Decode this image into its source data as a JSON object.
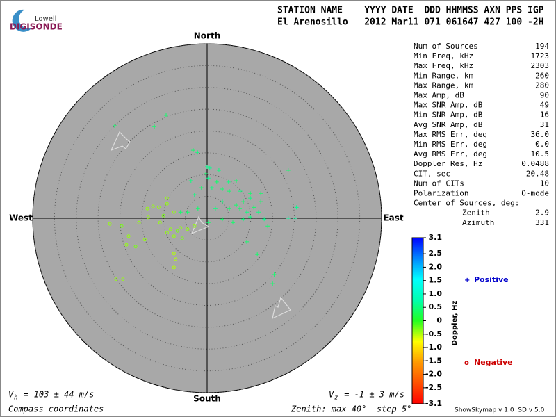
{
  "logo": {
    "top": "Lowell",
    "bottom": "DIGISONDE"
  },
  "header": {
    "labels": "STATION NAME    YYYY DATE  DDD HHMMSS AXN PPS IGP",
    "values": "El Arenosillo   2012 Mar11 071 061647 427 100 -2H"
  },
  "stats": {
    "rows": [
      [
        "Num of Sources",
        "194"
      ],
      [
        "Min Freq, kHz",
        "1723"
      ],
      [
        "Max Freq, kHz",
        "2303"
      ],
      [
        "Min Range, km",
        "260"
      ],
      [
        "Max Range, km",
        "280"
      ],
      [
        "Max Amp, dB",
        "90"
      ],
      [
        "Max SNR Amp, dB",
        "49"
      ],
      [
        "Min SNR Amp, dB",
        "16"
      ],
      [
        "Avg SNR Amp, dB",
        "31"
      ],
      [
        "Max RMS Err, deg",
        "36.0"
      ],
      [
        "Min RMS Err, deg",
        "0.0"
      ],
      [
        "Avg RMS Err, deg",
        "10.5"
      ],
      [
        "Doppler Res, Hz",
        "0.0488"
      ],
      [
        "CIT, sec",
        "20.48"
      ],
      [
        "Num of CITs",
        "10"
      ],
      [
        "Polarization",
        "O-mode"
      ]
    ],
    "center_label": "Center of Sources, deg:",
    "center_rows": [
      [
        "Zenith",
        "2.9"
      ],
      [
        "Azimuth",
        "331"
      ]
    ]
  },
  "footer": {
    "vh_symbol": "V",
    "vh_sub": "h",
    "vh_text": " = 103 ± 44 m/s",
    "vz_symbol": "V",
    "vz_sub": "z",
    "vz_text": " = -1 ± 3 m/s",
    "coords": "Compass coordinates",
    "zenith": "Zenith: max 40°  step 5°",
    "version": "ShowSkymap v 1.0  SD v 5.0"
  },
  "chart_data": {
    "type": "polar-scatter",
    "directions": {
      "north": "North",
      "south": "South",
      "east": "East",
      "west": "West"
    },
    "rlim": [
      0,
      40
    ],
    "rticks": [
      5,
      10,
      15,
      20,
      25,
      30,
      35,
      40
    ],
    "colorbar": {
      "label": "Doppler, Hz",
      "lim": [
        -3.1,
        3.1
      ],
      "colors": [
        "#ff0000",
        "#ff5000",
        "#ff9a00",
        "#ffff00",
        "#22ff22",
        "#00ffb0",
        "#00ffff",
        "#0088ff",
        "#0000ff"
      ],
      "ticks": [
        3.1,
        2.5,
        {
          "value": 2,
          "label": "2.0"
        },
        1.5,
        {
          "value": 1,
          "label": "1.0"
        },
        0.5,
        0,
        -0.5,
        {
          "value": -1,
          "label": "-1.0"
        },
        -1.5,
        {
          "value": -2,
          "label": "-2.0"
        },
        -2.5,
        -3.1
      ]
    },
    "series": [
      {
        "name": "Positive",
        "marker": "+",
        "color": "#0000cc",
        "x": [
          -9.4,
          -12.1,
          -21.2,
          -3.2,
          -2.2,
          0,
          0.6,
          -0.3,
          2.7,
          6.7,
          4.9,
          0.3,
          2.2,
          1.1,
          3.5,
          5.1,
          7.6,
          9.9,
          12.3,
          9.9,
          8.3,
          6.7,
          3.5,
          5.1,
          7.5,
          9.1,
          10.7,
          12.3,
          11.8,
          13.1,
          13.9,
          18.6,
          20.5,
          18.6,
          20.2,
          9.1,
          11.5,
          15.4,
          15.0,
          1.9,
          0.3,
          -2.1,
          -4.5,
          -6.1,
          -2.9,
          -3.7,
          -1.3,
          3.5,
          5.9,
          8.3,
          9.9
        ],
        "y": [
          23.6,
          21.0,
          21.2,
          15.6,
          15.1,
          11.8,
          11.5,
          10.2,
          11.0,
          8.6,
          8.3,
          9.2,
          8.3,
          7.0,
          6.7,
          6.2,
          6.2,
          5.7,
          5.7,
          4.6,
          3.8,
          3.0,
          3.8,
          2.2,
          2.2,
          1.4,
          2.5,
          3.8,
          1.4,
          -0.2,
          -1.8,
          11.0,
          2.5,
          0,
          0,
          -5.4,
          -8.3,
          -12.9,
          -15.0,
          2.2,
          -1.0,
          2.2,
          1.4,
          1.4,
          5.4,
          8.6,
          7.0,
          -0.2,
          -1.0,
          -0.2,
          0.3
        ],
        "doppler": [
          0.4,
          0.4,
          0.4,
          0.4,
          0.5,
          0.6,
          0.6,
          0.4,
          0.5,
          0.4,
          0.5,
          0.6,
          0.4,
          0.5,
          0.4,
          0.4,
          0.5,
          0.4,
          0.4,
          0.5,
          0.4,
          0.4,
          0.5,
          0.4,
          0.4,
          0.5,
          0.4,
          0.4,
          0.5,
          0.6,
          0.4,
          0.4,
          0.6,
          0.7,
          0.7,
          0.4,
          0.4,
          0.4,
          0.4,
          0.5,
          0.4,
          0.4,
          0.4,
          0.4,
          0.5,
          0.5,
          0.4,
          0.4,
          0.4,
          0.5,
          0.5
        ]
      },
      {
        "name": "Negative",
        "marker": "o",
        "color": "#cc0000",
        "x": [
          -13.7,
          -12.4,
          -9.2,
          -9.2,
          -11.1,
          -10.0,
          -7.6,
          -13.5,
          -22.3,
          -19.6,
          -15.6,
          -10.8,
          -8.4,
          -6.8,
          -6.1,
          -4.5,
          -7.6,
          -9.2,
          -18.0,
          -18.5,
          -16.4,
          -14.3,
          -7.6,
          -7.2,
          -7.6,
          -20.9,
          -19.3,
          -5.7,
          -2.9
        ],
        "y": [
          2.2,
          2.7,
          4.6,
          3.3,
          2.5,
          0.6,
          1.4,
          0.2,
          -1.3,
          -1.8,
          -1.0,
          -1.0,
          -2.5,
          -2.9,
          -2.2,
          -2.5,
          -4.1,
          -3.3,
          -4.1,
          -6.1,
          -6.5,
          -4.9,
          -8.1,
          -9.4,
          -11.3,
          -14.0,
          -14.0,
          -4.6,
          -1.8
        ],
        "doppler": [
          -0.4,
          -0.4,
          -0.4,
          -0.4,
          -0.4,
          -0.3,
          -0.4,
          -0.4,
          -0.4,
          -0.3,
          -0.4,
          -0.4,
          -0.4,
          -0.3,
          -0.4,
          -0.4,
          -0.4,
          -0.4,
          -0.4,
          -0.4,
          -0.3,
          -0.4,
          -0.5,
          -0.5,
          -0.5,
          -0.4,
          -0.4,
          -0.3,
          -0.4
        ]
      }
    ]
  }
}
